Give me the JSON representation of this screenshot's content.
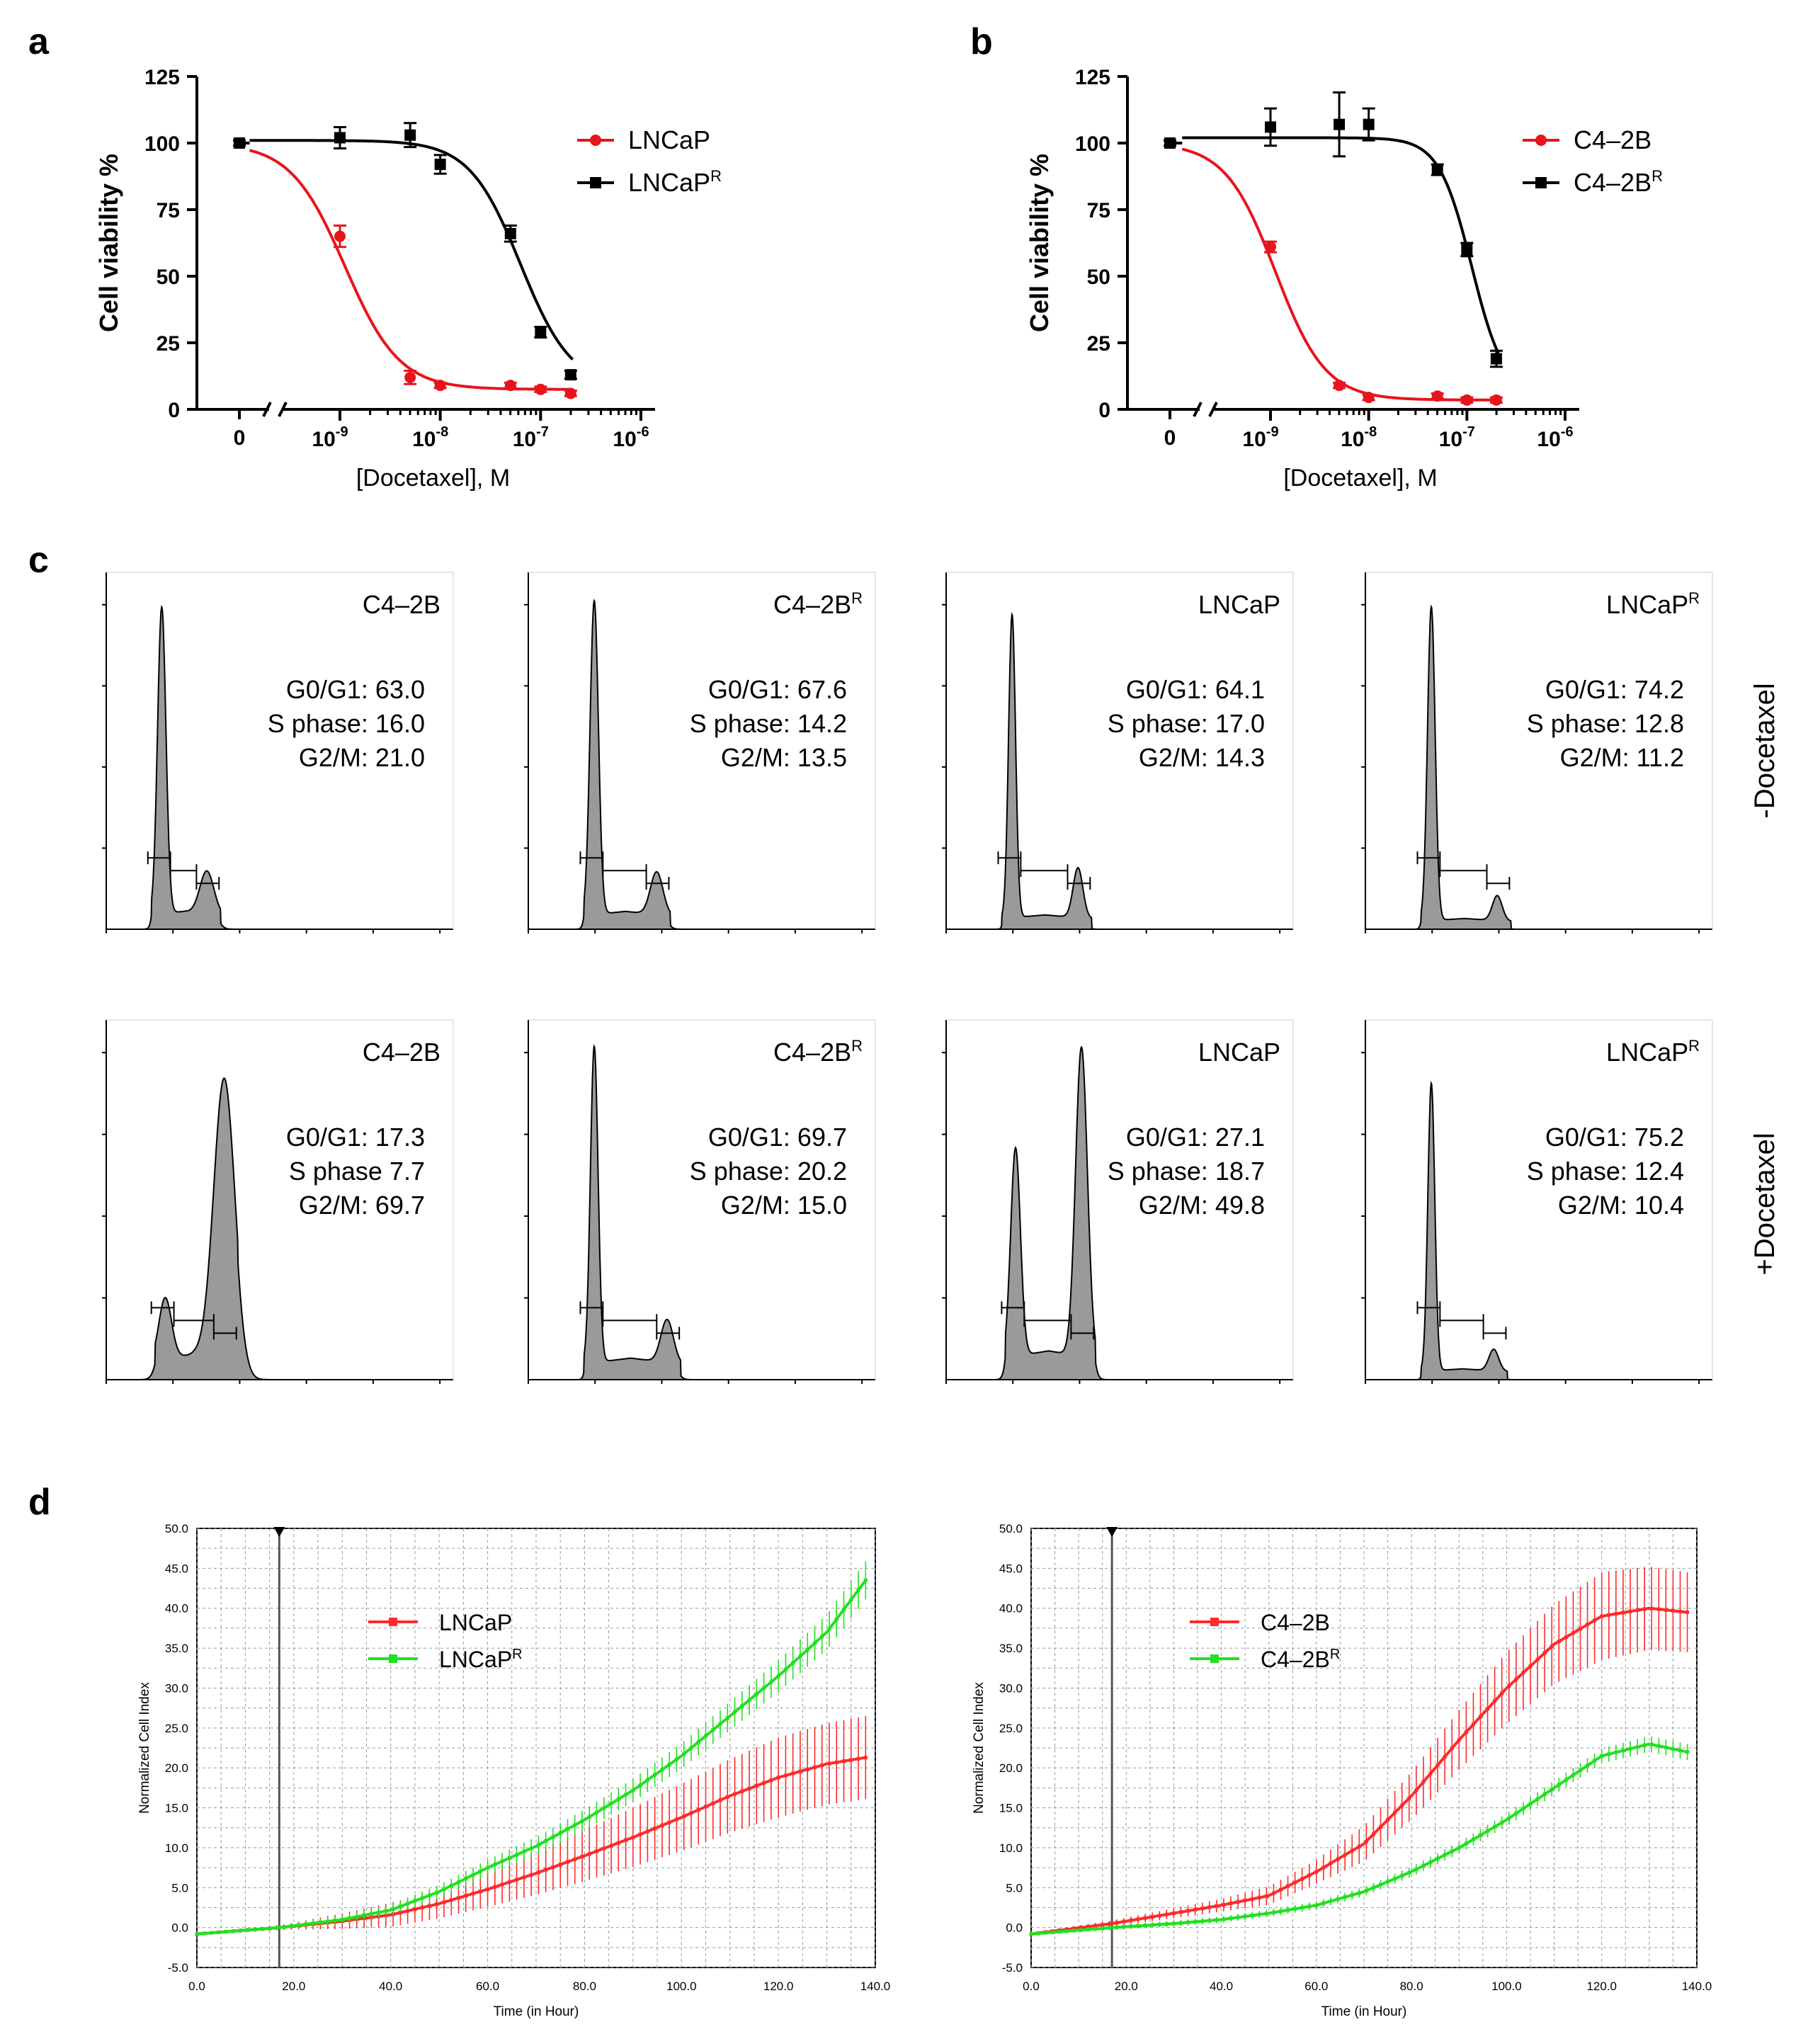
{
  "panel_letters": [
    "a",
    "b",
    "c",
    "d"
  ],
  "chart_data": [
    {
      "id": "a",
      "type": "line",
      "ylabel": "Cell viability %",
      "xlabel": "[Docetaxel], M",
      "yticks": [
        "0",
        "25",
        "50",
        "75",
        "100",
        "125"
      ],
      "ylim": [
        0,
        125
      ],
      "xticks": [
        {
          "base": "10",
          "exp": "-9"
        },
        {
          "base": "10",
          "exp": "-8"
        },
        {
          "base": "10",
          "exp": "-7"
        },
        {
          "base": "10",
          "exp": "-6"
        }
      ],
      "x_zero_label": "0",
      "series": [
        {
          "name": "LNCaP",
          "sup": "",
          "color": "#e8141c",
          "marker": "circle",
          "points": [
            {
              "logx": null,
              "y": 100,
              "err": 1
            },
            {
              "logx": -9,
              "y": 65,
              "err": 4
            },
            {
              "logx": -8.3,
              "y": 12,
              "err": 2.5
            },
            {
              "logx": -8,
              "y": 9,
              "err": 1
            },
            {
              "logx": -7.3,
              "y": 9,
              "err": 1
            },
            {
              "logx": -7,
              "y": 7.5,
              "err": 1
            },
            {
              "logx": -6.7,
              "y": 6,
              "err": 1
            }
          ],
          "fit": {
            "top": 100,
            "bottom": 7.5,
            "logec50": -8.95,
            "hill": 1.6
          }
        },
        {
          "name": "LNCaP",
          "sup": "R",
          "color": "#000000",
          "marker": "square",
          "points": [
            {
              "logx": null,
              "y": 100,
              "err": 1
            },
            {
              "logx": -9,
              "y": 102,
              "err": 4
            },
            {
              "logx": -8.3,
              "y": 103,
              "err": 4.5
            },
            {
              "logx": -8,
              "y": 92,
              "err": 3.5
            },
            {
              "logx": -7.3,
              "y": 66,
              "err": 3
            },
            {
              "logx": -7,
              "y": 29,
              "err": 2
            },
            {
              "logx": -6.7,
              "y": 13,
              "err": 1.5
            }
          ],
          "fit": {
            "top": 101,
            "bottom": 8,
            "logec50": -7.2,
            "hill": 1.7
          }
        }
      ]
    },
    {
      "id": "b",
      "type": "line",
      "ylabel": "Cell viability %",
      "xlabel": "[Docetaxel], M",
      "yticks": [
        "0",
        "25",
        "50",
        "75",
        "100",
        "125"
      ],
      "ylim": [
        0,
        125
      ],
      "xticks": [
        {
          "base": "10",
          "exp": "-9"
        },
        {
          "base": "10",
          "exp": "-8"
        },
        {
          "base": "10",
          "exp": "-7"
        },
        {
          "base": "10",
          "exp": "-6"
        }
      ],
      "x_zero_label": "0",
      "series": [
        {
          "name": "C4–2B",
          "sup": "",
          "color": "#e8141c",
          "marker": "circle",
          "points": [
            {
              "logx": null,
              "y": 100,
              "err": 1
            },
            {
              "logx": -9,
              "y": 61,
              "err": 2
            },
            {
              "logx": -8.3,
              "y": 9,
              "err": 1
            },
            {
              "logx": -8,
              "y": 4.5,
              "err": 1
            },
            {
              "logx": -7.3,
              "y": 5,
              "err": 1
            },
            {
              "logx": -7,
              "y": 3.5,
              "err": 1
            },
            {
              "logx": -6.7,
              "y": 3.5,
              "err": 1
            }
          ],
          "fit": {
            "top": 100,
            "bottom": 3.5,
            "logec50": -8.95,
            "hill": 1.7
          }
        },
        {
          "name": "C4–2B",
          "sup": "R",
          "color": "#000000",
          "marker": "square",
          "points": [
            {
              "logx": null,
              "y": 100,
              "err": 1
            },
            {
              "logx": -9,
              "y": 106,
              "err": 7
            },
            {
              "logx": -8.3,
              "y": 107,
              "err": 12
            },
            {
              "logx": -8,
              "y": 107,
              "err": 6
            },
            {
              "logx": -7.3,
              "y": 90,
              "err": 2
            },
            {
              "logx": -7,
              "y": 60,
              "err": 2.5
            },
            {
              "logx": -6.7,
              "y": 19,
              "err": 3
            }
          ],
          "fit": {
            "top": 102,
            "bottom": 5,
            "logec50": -6.95,
            "hill": 2.6
          }
        }
      ]
    },
    {
      "id": "d1",
      "type": "line",
      "xlabel": "Time (in Hour)",
      "ylabel": "Normalized Cell Index",
      "xlim": [
        0,
        140
      ],
      "ylim": [
        -5,
        50
      ],
      "xticks": [
        "0.0",
        "20.0",
        "40.0",
        "60.0",
        "80.0",
        "100.0",
        "120.0",
        "140.0"
      ],
      "yticks": [
        "-5.0",
        "0.0",
        "5.0",
        "10.0",
        "15.0",
        "20.0",
        "25.0",
        "30.0",
        "35.0",
        "40.0",
        "45.0",
        "50.0"
      ],
      "marker_line_x": 17,
      "series": [
        {
          "name": "LNCaP",
          "sup": "",
          "color": "#ff2a2a",
          "knots": [
            [
              0,
              -0.8
            ],
            [
              17,
              0
            ],
            [
              30,
              0.8
            ],
            [
              40,
              1.6
            ],
            [
              50,
              3
            ],
            [
              60,
              4.8
            ],
            [
              70,
              6.8
            ],
            [
              80,
              9
            ],
            [
              90,
              11.3
            ],
            [
              100,
              13.8
            ],
            [
              110,
              16.5
            ],
            [
              120,
              18.8
            ],
            [
              130,
              20.5
            ],
            [
              138,
              21.3
            ]
          ],
          "err_knots": [
            [
              0,
              0.2
            ],
            [
              17,
              0.3
            ],
            [
              40,
              1.5
            ],
            [
              60,
              2.2
            ],
            [
              80,
              3.2
            ],
            [
              100,
              4.2
            ],
            [
              120,
              5
            ],
            [
              138,
              5.2
            ]
          ]
        },
        {
          "name": "LNCaP",
          "sup": "R",
          "color": "#21e021",
          "knots": [
            [
              0,
              -0.8
            ],
            [
              17,
              0
            ],
            [
              30,
              1
            ],
            [
              40,
              2.2
            ],
            [
              50,
              4.5
            ],
            [
              60,
              7.5
            ],
            [
              70,
              10.2
            ],
            [
              80,
              13.5
            ],
            [
              90,
              17.2
            ],
            [
              100,
              21.5
            ],
            [
              110,
              26.5
            ],
            [
              120,
              31.5
            ],
            [
              130,
              37
            ],
            [
              138,
              43.5
            ]
          ],
          "err_knots": [
            [
              0,
              0.2
            ],
            [
              17,
              0.3
            ],
            [
              40,
              0.7
            ],
            [
              60,
              1
            ],
            [
              80,
              1.3
            ],
            [
              100,
              1.6
            ],
            [
              120,
              2
            ],
            [
              138,
              2.4
            ]
          ]
        }
      ]
    },
    {
      "id": "d2",
      "type": "line",
      "xlabel": "Time (in Hour)",
      "ylabel": "Normalized Cell Index",
      "xlim": [
        0,
        140
      ],
      "ylim": [
        -5,
        50
      ],
      "xticks": [
        "0.0",
        "20.0",
        "40.0",
        "60.0",
        "80.0",
        "100.0",
        "120.0",
        "140.0"
      ],
      "yticks": [
        "-5.0",
        "0.0",
        "5.0",
        "10.0",
        "15.0",
        "20.0",
        "25.0",
        "30.0",
        "35.0",
        "40.0",
        "45.0",
        "50.0"
      ],
      "marker_line_x": 17,
      "series": [
        {
          "name": "C4–2B",
          "sup": "",
          "color": "#ff2a2a",
          "knots": [
            [
              0,
              -0.8
            ],
            [
              17,
              0.5
            ],
            [
              30,
              1.8
            ],
            [
              40,
              2.8
            ],
            [
              50,
              4
            ],
            [
              60,
              7
            ],
            [
              70,
              10.5
            ],
            [
              80,
              16.5
            ],
            [
              90,
              23.5
            ],
            [
              100,
              30
            ],
            [
              110,
              35.5
            ],
            [
              120,
              39
            ],
            [
              130,
              40
            ],
            [
              138,
              39.5
            ]
          ],
          "err_knots": [
            [
              0,
              0.2
            ],
            [
              17,
              0.4
            ],
            [
              40,
              0.8
            ],
            [
              60,
              1.5
            ],
            [
              80,
              3
            ],
            [
              100,
              4.5
            ],
            [
              120,
              5.5
            ],
            [
              138,
              5
            ]
          ]
        },
        {
          "name": "C4–2B",
          "sup": "R",
          "color": "#21e021",
          "knots": [
            [
              0,
              -0.8
            ],
            [
              17,
              0
            ],
            [
              30,
              0.5
            ],
            [
              40,
              1
            ],
            [
              50,
              1.8
            ],
            [
              60,
              2.8
            ],
            [
              70,
              4.5
            ],
            [
              80,
              7
            ],
            [
              90,
              10
            ],
            [
              100,
              13.5
            ],
            [
              110,
              17.5
            ],
            [
              120,
              21.5
            ],
            [
              130,
              23
            ],
            [
              138,
              22
            ]
          ],
          "err_knots": [
            [
              0,
              0.2
            ],
            [
              17,
              0.3
            ],
            [
              60,
              0.5
            ],
            [
              100,
              0.8
            ],
            [
              130,
              1
            ],
            [
              138,
              1
            ]
          ]
        }
      ]
    },
    {
      "id": "c",
      "type": "histogram",
      "row_labels": [
        "-Docetaxel",
        "+Docetaxel"
      ],
      "stat_labels": {
        "g": "G0/G1:",
        "s": "S phase:",
        "s_alt": "S phase",
        "m": "G2/M:"
      },
      "panels": [
        {
          "title": "C4–2B",
          "sup": "",
          "g": "63.0",
          "s": "16.0",
          "m": "21.0",
          "s_label": "S phase:",
          "peaks": [
            {
              "x": 0.16,
              "h": 0.86,
              "w": 0.012
            },
            {
              "x": 0.29,
              "h": 0.12,
              "w": 0.02
            }
          ],
          "base": 0.05
        },
        {
          "title": "C4–2B",
          "sup": "R",
          "g": "67.6",
          "s": "14.2",
          "m": "13.5",
          "s_label": "S phase:",
          "peaks": [
            {
              "x": 0.19,
              "h": 0.88,
              "w": 0.012
            },
            {
              "x": 0.37,
              "h": 0.12,
              "w": 0.018
            }
          ],
          "base": 0.05
        },
        {
          "title": "LNCaP",
          "sup": "",
          "g": "64.1",
          "s": "17.0",
          "m": "14.3",
          "s_label": "S phase:",
          "peaks": [
            {
              "x": 0.19,
              "h": 0.85,
              "w": 0.01
            },
            {
              "x": 0.38,
              "h": 0.14,
              "w": 0.014
            }
          ],
          "base": 0.04
        },
        {
          "title": "LNCaP",
          "sup": "R",
          "g": "74.2",
          "s": "12.8",
          "m": "11.2",
          "s_label": "S phase:",
          "peaks": [
            {
              "x": 0.19,
              "h": 0.88,
              "w": 0.011
            },
            {
              "x": 0.38,
              "h": 0.07,
              "w": 0.014
            }
          ],
          "base": 0.03
        },
        {
          "title": "C4–2B",
          "sup": "",
          "g": "17.3",
          "s": "7.7",
          "m": "69.7",
          "s_label": "S phase",
          "peaks": [
            {
              "x": 0.17,
              "h": 0.17,
              "w": 0.018
            },
            {
              "x": 0.34,
              "h": 0.78,
              "w": 0.03
            }
          ],
          "base": 0.07
        },
        {
          "title": "C4–2B",
          "sup": "R",
          "g": "69.7",
          "s": "20.2",
          "m": "15.0",
          "s_label": "S phase:",
          "peaks": [
            {
              "x": 0.19,
              "h": 0.88,
              "w": 0.011
            },
            {
              "x": 0.4,
              "h": 0.12,
              "w": 0.018
            }
          ],
          "base": 0.06
        },
        {
          "title": "LNCaP",
          "sup": "",
          "g": "27.1",
          "s": "18.7",
          "m": "49.8",
          "s_label": "S phase:",
          "peaks": [
            {
              "x": 0.2,
              "h": 0.58,
              "w": 0.014
            },
            {
              "x": 0.39,
              "h": 0.86,
              "w": 0.017
            }
          ],
          "base": 0.08
        },
        {
          "title": "LNCaP",
          "sup": "R",
          "g": "75.2",
          "s": "12.4",
          "m": "10.4",
          "s_label": "S phase:",
          "peaks": [
            {
              "x": 0.19,
              "h": 0.8,
              "w": 0.01
            },
            {
              "x": 0.37,
              "h": 0.06,
              "w": 0.014
            }
          ],
          "base": 0.03
        }
      ]
    }
  ]
}
